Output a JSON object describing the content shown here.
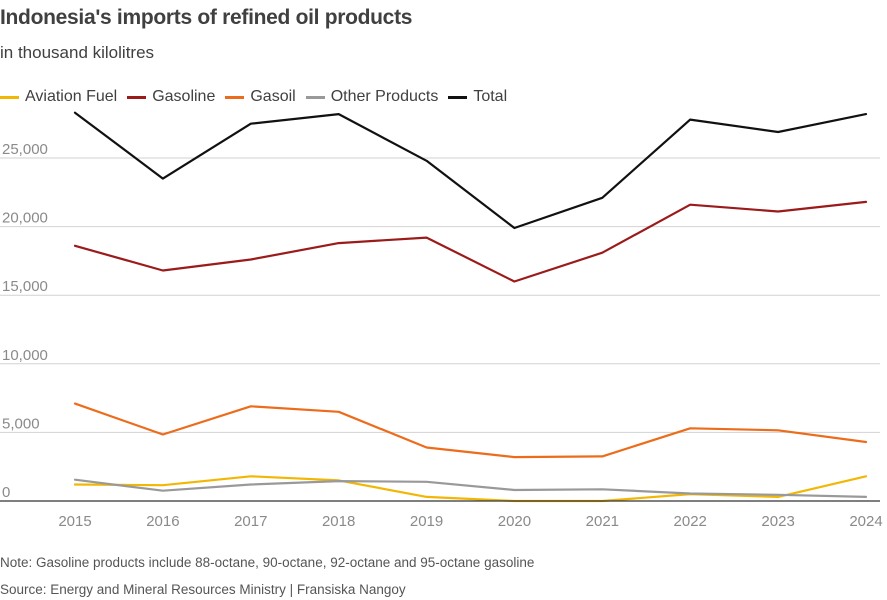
{
  "header": {
    "title": "Indonesia's imports of refined oil products",
    "subtitle": "in thousand kilolitres"
  },
  "footer": {
    "note": "Note: Gasoline products include 88-octane, 90-octane, 92-octane and 95-octane gasoline",
    "source": "Source: Energy and Mineral Resources Ministry | Fransiska Nangoy"
  },
  "chart_data": {
    "type": "line",
    "title": "Indonesia's imports of refined oil products",
    "subtitle": "in thousand kilolitres",
    "xlabel": "",
    "ylabel": "",
    "x": [
      "2015",
      "2016",
      "2017",
      "2018",
      "2019",
      "2020",
      "2021",
      "2022",
      "2023",
      "2024"
    ],
    "ylim": [
      0,
      28500
    ],
    "yticks": [
      0,
      5000,
      10000,
      15000,
      20000,
      25000
    ],
    "ytick_labels": [
      "0",
      "5,000",
      "10,000",
      "15,000",
      "20,000",
      "25,000"
    ],
    "grid": true,
    "legend_position": "top-left",
    "series": [
      {
        "name": "Aviation Fuel",
        "color": "#f2b705",
        "values": [
          1200,
          1150,
          1800,
          1500,
          300,
          0,
          0,
          500,
          300,
          1800
        ]
      },
      {
        "name": "Gasoline",
        "color": "#9b1b1b",
        "values": [
          18600,
          16800,
          17600,
          18800,
          19200,
          16000,
          18100,
          21600,
          21100,
          21800
        ]
      },
      {
        "name": "Gasoil",
        "color": "#ec6c1b",
        "values": [
          7100,
          4850,
          6900,
          6500,
          3900,
          3200,
          3250,
          5300,
          5150,
          4300
        ]
      },
      {
        "name": "Other Products",
        "color": "#999999",
        "values": [
          1550,
          750,
          1200,
          1450,
          1400,
          800,
          850,
          550,
          450,
          300
        ]
      },
      {
        "name": "Total",
        "color": "#111111",
        "values": [
          28300,
          23500,
          27500,
          28200,
          24800,
          19900,
          22100,
          27800,
          26900,
          28200
        ]
      }
    ]
  }
}
